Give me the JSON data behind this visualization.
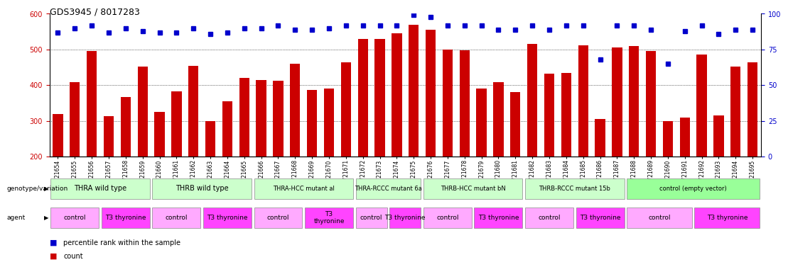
{
  "title": "GDS3945 / 8017283",
  "samples": [
    "GSM721654",
    "GSM721655",
    "GSM721656",
    "GSM721657",
    "GSM721658",
    "GSM721659",
    "GSM721660",
    "GSM721661",
    "GSM721662",
    "GSM721663",
    "GSM721664",
    "GSM721665",
    "GSM721666",
    "GSM721667",
    "GSM721668",
    "GSM721669",
    "GSM721670",
    "GSM721671",
    "GSM721672",
    "GSM721673",
    "GSM721674",
    "GSM721675",
    "GSM721676",
    "GSM721677",
    "GSM721678",
    "GSM721679",
    "GSM721680",
    "GSM721681",
    "GSM721682",
    "GSM721683",
    "GSM721684",
    "GSM721685",
    "GSM721686",
    "GSM721687",
    "GSM721688",
    "GSM721689",
    "GSM721690",
    "GSM721691",
    "GSM721692",
    "GSM721693",
    "GSM721694",
    "GSM721695"
  ],
  "bar_values": [
    320,
    408,
    495,
    313,
    367,
    452,
    325,
    383,
    455,
    300,
    355,
    420,
    415,
    412,
    460,
    387,
    390,
    465,
    530,
    530,
    545,
    570,
    555,
    500,
    497,
    390,
    408,
    380,
    515,
    432,
    434,
    512,
    305,
    505,
    510,
    495,
    300,
    310,
    485,
    315,
    453,
    465
  ],
  "percentile_values": [
    87,
    90,
    92,
    87,
    90,
    88,
    87,
    87,
    90,
    86,
    87,
    90,
    90,
    92,
    89,
    89,
    90,
    92,
    92,
    92,
    92,
    99,
    98,
    92,
    92,
    92,
    89,
    89,
    92,
    89,
    92,
    92,
    68,
    92,
    92,
    89,
    65,
    88,
    92,
    86,
    89,
    89
  ],
  "ylim_left": [
    200,
    600
  ],
  "ylim_right": [
    0,
    100
  ],
  "yticks_left": [
    200,
    300,
    400,
    500,
    600
  ],
  "yticks_right": [
    0,
    25,
    50,
    75,
    100
  ],
  "bar_color": "#cc0000",
  "dot_color": "#0000cc",
  "genotype_groups": [
    {
      "label": "THRA wild type",
      "start": 0,
      "end": 5,
      "color": "#ccffcc"
    },
    {
      "label": "THRB wild type",
      "start": 6,
      "end": 11,
      "color": "#ccffcc"
    },
    {
      "label": "THRA-HCC mutant al",
      "start": 12,
      "end": 17,
      "color": "#ccffcc"
    },
    {
      "label": "THRA-RCCC mutant 6a",
      "start": 18,
      "end": 21,
      "color": "#ccffcc"
    },
    {
      "label": "THRB-HCC mutant bN",
      "start": 22,
      "end": 27,
      "color": "#ccffcc"
    },
    {
      "label": "THRB-RCCC mutant 15b",
      "start": 28,
      "end": 33,
      "color": "#ccffcc"
    },
    {
      "label": "control (empty vector)",
      "start": 34,
      "end": 41,
      "color": "#99ff99"
    }
  ],
  "agent_groups": [
    {
      "label": "control",
      "start": 0,
      "end": 2,
      "color": "#ffaaff"
    },
    {
      "label": "T3 thyronine",
      "start": 3,
      "end": 5,
      "color": "#ff44ff"
    },
    {
      "label": "control",
      "start": 6,
      "end": 8,
      "color": "#ffaaff"
    },
    {
      "label": "T3 thyronine",
      "start": 9,
      "end": 11,
      "color": "#ff44ff"
    },
    {
      "label": "control",
      "start": 12,
      "end": 14,
      "color": "#ffaaff"
    },
    {
      "label": "T3\nthyronine",
      "start": 15,
      "end": 17,
      "color": "#ff44ff"
    },
    {
      "label": "control",
      "start": 18,
      "end": 19,
      "color": "#ffaaff"
    },
    {
      "label": "T3 thyronine",
      "start": 20,
      "end": 21,
      "color": "#ff44ff"
    },
    {
      "label": "control",
      "start": 22,
      "end": 24,
      "color": "#ffaaff"
    },
    {
      "label": "T3 thyronine",
      "start": 25,
      "end": 27,
      "color": "#ff44ff"
    },
    {
      "label": "control",
      "start": 28,
      "end": 30,
      "color": "#ffaaff"
    },
    {
      "label": "T3 thyronine",
      "start": 31,
      "end": 33,
      "color": "#ff44ff"
    },
    {
      "label": "control",
      "start": 34,
      "end": 37,
      "color": "#ffaaff"
    },
    {
      "label": "T3 thyronine",
      "start": 38,
      "end": 41,
      "color": "#ff44ff"
    }
  ],
  "legend_count_color": "#cc0000",
  "legend_dot_color": "#0000cc",
  "xlabel_genotype": "genotype/variation",
  "xlabel_agent": "agent"
}
